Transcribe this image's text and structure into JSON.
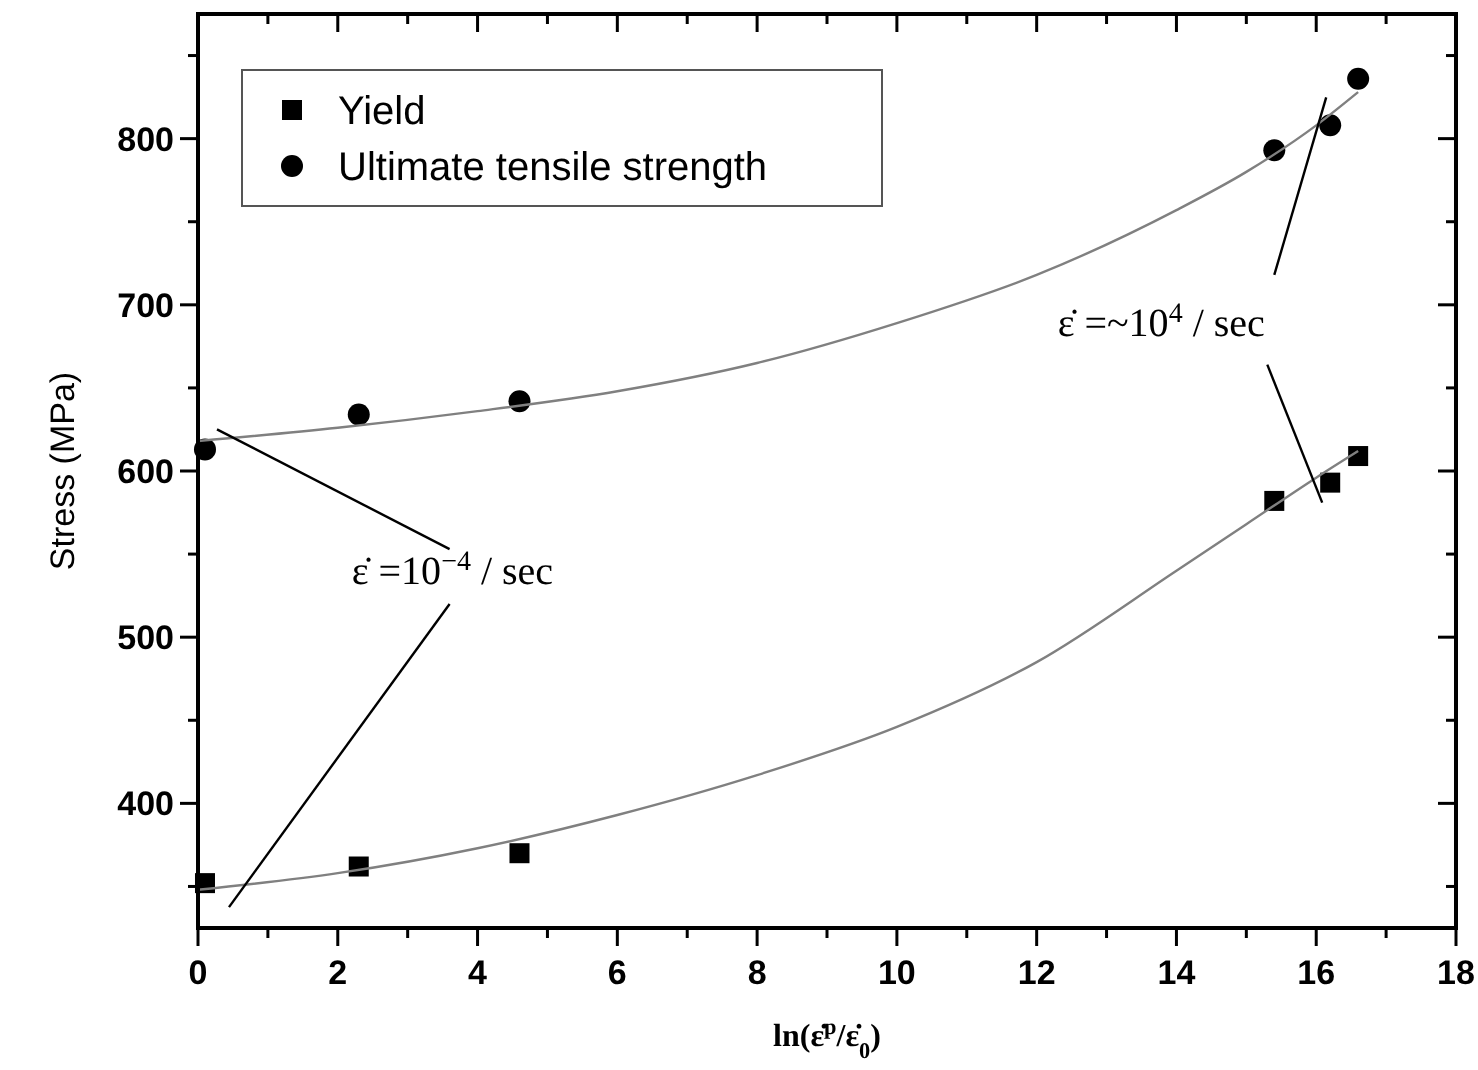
{
  "chart_data": {
    "type": "scatter",
    "xlabel": "ln(ε̇$^{p}$/ε̇$_{0}$)",
    "ylabel": "Stress (MPa)",
    "xlim": [
      0,
      18
    ],
    "ylim": [
      325,
      875
    ],
    "xticks": [
      0,
      {
        "value": 1,
        "label": null
      },
      2,
      {
        "value": 3,
        "label": null
      },
      4,
      {
        "value": 5,
        "label": null
      },
      6,
      {
        "value": 7,
        "label": null
      },
      8,
      {
        "value": 9,
        "label": null
      },
      10,
      {
        "value": 11,
        "label": null
      },
      12,
      {
        "value": 13,
        "label": null
      },
      14,
      {
        "value": 15,
        "label": null
      },
      16,
      {
        "value": 17,
        "label": null
      },
      18
    ],
    "yticks": [
      {
        "value": 350,
        "label": null
      },
      400,
      {
        "value": 450,
        "label": null
      },
      500,
      {
        "value": 550,
        "label": null
      },
      600,
      {
        "value": 650,
        "label": null
      },
      700,
      {
        "value": 750,
        "label": null
      },
      800,
      {
        "value": 850,
        "label": null
      }
    ],
    "grid": false,
    "legend": "top left",
    "series": [
      {
        "name": "Yield",
        "color": "#000000",
        "marker": "square",
        "x": [
          0.1,
          2.3,
          4.6,
          15.4,
          16.2,
          16.6
        ],
        "values": [
          352,
          362,
          370,
          582,
          593,
          609
        ]
      },
      {
        "name": "Ultimate tensile strength",
        "color": "#000000",
        "marker": "circle",
        "x": [
          0.1,
          2.3,
          4.6,
          15.4,
          16.2,
          16.6
        ],
        "values": [
          613,
          634,
          642,
          793,
          808,
          836
        ]
      },
      {
        "type": "line",
        "color": "#808080",
        "marker": "none",
        "x": [
          0,
          2,
          4,
          6,
          8,
          10,
          12,
          14,
          15,
          16,
          16.6
        ],
        "values": [
          348,
          358,
          373,
          393,
          417,
          446,
          485,
          540,
          568,
          596,
          612
        ]
      },
      {
        "type": "line",
        "color": "#808080",
        "marker": "none",
        "x": [
          0,
          2,
          4,
          6,
          8,
          10,
          12,
          14,
          15,
          16,
          16.6
        ],
        "values": [
          618,
          626,
          636,
          648,
          665,
          689,
          718,
          757,
          780,
          808,
          828
        ]
      }
    ],
    "annotations": [
      "ε̇ =10$^{−4}$ / sec",
      "ε̇ =~10$^{4}$ / sec"
    ]
  }
}
